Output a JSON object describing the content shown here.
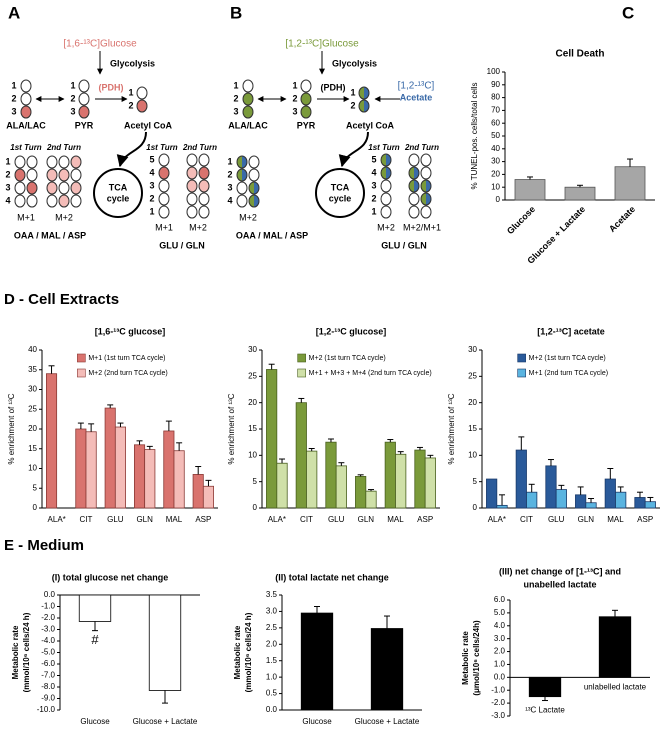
{
  "sections": {
    "D": "D - Cell Extracts",
    "E": "E - Medium"
  },
  "diagram_a": {
    "letter": "A",
    "tracer": "[1,6-¹³C]Glucose",
    "step": "Glycolysis",
    "enzyme": "(PDH)",
    "ala": "ALA/LAC",
    "pyr": "PYR",
    "acoa": "Acetyl CoA",
    "turn1": "1st Turn",
    "turn2": "2nd Turn",
    "tca": [
      "TCA",
      "cycle"
    ],
    "oaa": "OAA / MAL / ASP",
    "glu": "GLU / GLN",
    "isotopologues": [
      "M+1",
      "M+2",
      "M+1",
      "M+2"
    ],
    "carbons": [
      "1",
      "2",
      "3",
      "4",
      "5"
    ]
  },
  "diagram_b": {
    "letter": "B",
    "tracer": "[1,2-¹³C]Glucose",
    "step": "Glycolysis",
    "enzyme": "(PDH)",
    "acetate": [
      "[1,2-¹³C]",
      "Acetate"
    ],
    "ala": "ALA/LAC",
    "pyr": "PYR",
    "acoa": "Acetyl CoA",
    "turn1": "1st Turn",
    "turn2": "2nd Turn",
    "tca": [
      "TCA",
      "cycle"
    ],
    "oaa": "OAA / MAL / ASP",
    "glu": "GLU / GLN",
    "isotopologues": [
      "M+2",
      "M+2",
      "M+2/M+1"
    ],
    "carbons": [
      "1",
      "2",
      "3",
      "4",
      "5"
    ]
  },
  "chart_data": [
    {
      "type": "bar",
      "panel": "C",
      "title": "Cell Death",
      "ylabel": [
        "% TUNEL-pos. cells/total cells"
      ],
      "categories": [
        "Glucose",
        "Glucose + Lactate",
        "Acetate"
      ],
      "values": [
        16,
        10,
        26
      ],
      "errors": [
        2,
        1.5,
        6
      ],
      "color": "#a6a6a6",
      "edgecolor": "#555555",
      "ylim": [
        0,
        100
      ],
      "yticks": [
        0,
        10,
        20,
        30,
        40,
        50,
        60,
        70,
        80,
        90,
        100
      ]
    },
    {
      "type": "bar",
      "title": [
        "[1,6-¹³C glucose]"
      ],
      "ylabel": [
        "% enrichment of ¹³C"
      ],
      "categories": [
        "ALA*",
        "CIT",
        "GLU",
        "GLN",
        "MAL",
        "ASP"
      ],
      "series": [
        {
          "name": "M+1 (1st turn TCA cycle)",
          "color": "#d9736e",
          "values": [
            34,
            20,
            25.3,
            16,
            19.5,
            8.5
          ],
          "errors": [
            2,
            1.5,
            0.8,
            1,
            2.5,
            2
          ]
        },
        {
          "name": "M+2 (2nd turn TCA cycle)",
          "color": "#f4bcb8",
          "values": [
            null,
            19.3,
            20.5,
            14.8,
            14.5,
            5.5
          ],
          "errors": [
            null,
            2,
            1,
            0.8,
            2,
            1.5
          ]
        }
      ],
      "edgecolor": "#8a3a36",
      "ylim": [
        0,
        40
      ],
      "yticks": [
        0,
        5,
        10,
        15,
        20,
        25,
        30,
        35,
        40
      ]
    },
    {
      "type": "bar",
      "title": [
        "[1,2-¹³C glucose]"
      ],
      "ylabel": [
        "% enrichment of ¹³C"
      ],
      "categories": [
        "ALA*",
        "CIT",
        "GLU",
        "GLN",
        "MAL",
        "ASP"
      ],
      "series": [
        {
          "name": "M+2 (1st turn TCA cycle)",
          "color": "#7a9a3a",
          "values": [
            26.3,
            20,
            12.5,
            6,
            12.5,
            11
          ],
          "errors": [
            1,
            0.8,
            0.6,
            0.3,
            0.5,
            0.5
          ]
        },
        {
          "name": "M+1 + M+3 + M+4 (2nd turn TCA cycle)",
          "color": "#cfe0a8",
          "values": [
            8.5,
            10.8,
            8,
            3.2,
            10.2,
            9.5
          ],
          "errors": [
            0.8,
            0.5,
            0.6,
            0.3,
            0.5,
            0.5
          ]
        }
      ],
      "edgecolor": "#4a6020",
      "ylim": [
        0,
        30
      ],
      "yticks": [
        0,
        5,
        10,
        15,
        20,
        25,
        30
      ]
    },
    {
      "type": "bar",
      "title": [
        "[1,2-¹³C] acetate"
      ],
      "ylabel": [
        "% enrichment of ¹³C"
      ],
      "categories": [
        "ALA*",
        "CIT",
        "GLU",
        "GLN",
        "MAL",
        "ASP"
      ],
      "series": [
        {
          "name": "M+2 (1st turn TCA cycle)",
          "color": "#2a5a9a",
          "values": [
            5.5,
            11,
            8,
            2.5,
            5.5,
            2
          ],
          "errors": [
            null,
            2.5,
            1.2,
            1.5,
            2,
            1
          ]
        },
        {
          "name": "M+1 (2nd turn TCA cycle)",
          "color": "#5ab4e0",
          "values": [
            0.5,
            3,
            3.5,
            1,
            3,
            1.2
          ],
          "errors": [
            2,
            1.5,
            0.8,
            0.8,
            1,
            0.8
          ]
        }
      ],
      "edgecolor": "#1a3a6a",
      "ylim": [
        0,
        30
      ],
      "yticks": [
        0,
        5,
        10,
        15,
        20,
        25,
        30
      ]
    },
    {
      "type": "bar",
      "title": [
        "(I)  total glucose net change"
      ],
      "ylabel": [
        "Metabolic rate",
        "(mmol/10⁶ cells/24 h)"
      ],
      "categories": [
        "Glucose",
        "Glucose + Lactate"
      ],
      "values": [
        -2.3,
        -8.3
      ],
      "errors": [
        0.8,
        1.1
      ],
      "color": "#ffffff",
      "edgecolor": "#000000",
      "annotation": "#",
      "ylim": [
        -10,
        0
      ],
      "yticks": [
        {
          "value": 0,
          "label": "0.0"
        },
        {
          "value": -1,
          "label": "-1.0"
        },
        {
          "value": -2,
          "label": "-2.0"
        },
        {
          "value": -3,
          "label": "-3.0"
        },
        {
          "value": -4,
          "label": "-4.0"
        },
        {
          "value": -5,
          "label": "-5.0"
        },
        {
          "value": -6,
          "label": "-6.0"
        },
        {
          "value": -7,
          "label": "-7.0"
        },
        {
          "value": -8,
          "label": "-8.0"
        },
        {
          "value": -9,
          "label": "-9.0"
        },
        {
          "value": -10,
          "label": "-10.0"
        }
      ]
    },
    {
      "type": "bar",
      "title": [
        "(II)  total lactate net change"
      ],
      "ylabel": [
        "Metabolic rate",
        "(mmol/10⁶ cells/24 h)"
      ],
      "categories": [
        "Glucose",
        "Glucose + Lactate"
      ],
      "values": [
        2.95,
        2.48
      ],
      "errors": [
        0.2,
        0.38
      ],
      "color": "#000000",
      "edgecolor": "#000000",
      "ylim": [
        0,
        3.5
      ],
      "yticks": [
        {
          "value": 0,
          "label": "0.0"
        },
        0.5,
        {
          "value": 1,
          "label": "1.0"
        },
        1.5,
        {
          "value": 2,
          "label": "2.0"
        },
        2.5,
        {
          "value": 3,
          "label": "3.0"
        },
        3.5
      ]
    },
    {
      "type": "bar",
      "title": [
        "(III)  net change of [1-¹³C] and",
        "unabelled lactate"
      ],
      "ylabel": [
        "Metabolic rate",
        "(μmol/10⁶ cells/24h)"
      ],
      "categories": [
        "¹³C Lactate",
        "unlabelled lactate"
      ],
      "values": [
        -1.5,
        4.7
      ],
      "errors": [
        0.3,
        0.5
      ],
      "color": "#000000",
      "edgecolor": "#000000",
      "ylim": [
        -3,
        6
      ],
      "yticks": [
        {
          "value": -3,
          "label": "-3.0"
        },
        {
          "value": -2,
          "label": "-2.0"
        },
        {
          "value": -1,
          "label": "-1.0"
        },
        {
          "value": 0,
          "label": "0.0"
        },
        {
          "value": 1,
          "label": "1.0"
        },
        {
          "value": 2,
          "label": "2.0"
        },
        {
          "value": 3,
          "label": "3.0"
        },
        {
          "value": 4,
          "label": "4.0"
        },
        {
          "value": 5,
          "label": "5.0"
        },
        {
          "value": 6,
          "label": "6.0"
        }
      ]
    }
  ]
}
